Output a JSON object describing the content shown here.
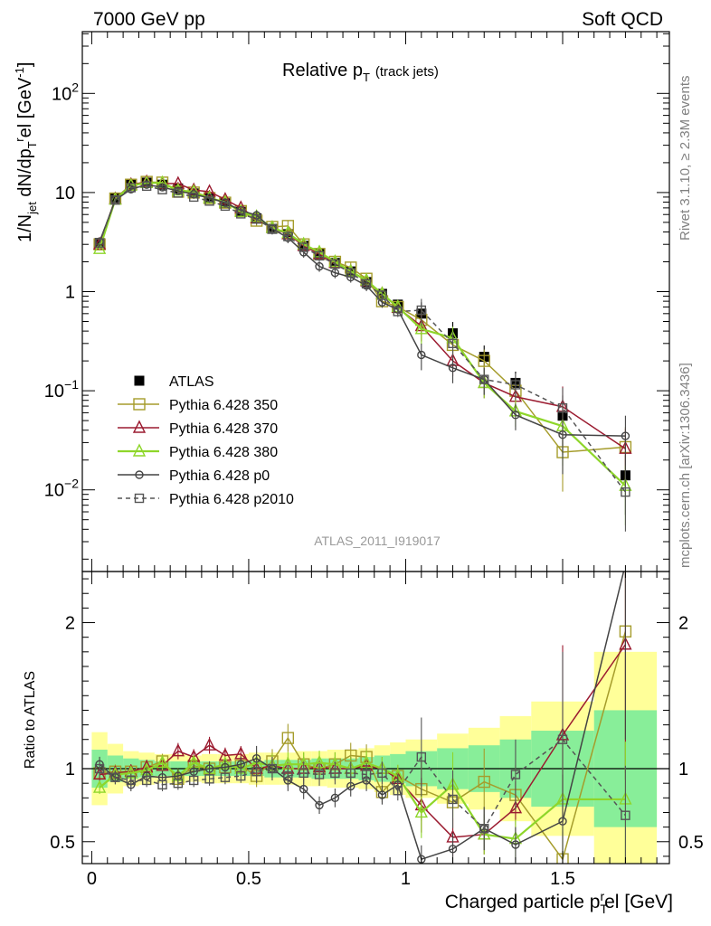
{
  "header": {
    "left": "7000 GeV pp",
    "right": "Soft QCD"
  },
  "side_labels": {
    "rivet": "Rivet 3.1.10,  ≥ 2.3M events",
    "mcplots": "mcplots.cern.ch [arXiv:1306.3436]"
  },
  "analysis_id": "ATLAS_2011_I919017",
  "chart_data": [
    {
      "type": "line",
      "title": "Relative pᵀ (track jets)",
      "title_main": "Relative p",
      "title_sub": "T",
      "title_suffix": "(track jets)",
      "ylabel": "1/N_jet dN/dp_T^rel [GeV^-1]",
      "yscale": "log",
      "xlim": [
        -0.03,
        1.84
      ],
      "ylim": [
        0.0015,
        420
      ],
      "y_ticks": [
        {
          "value": 0.01,
          "label": "10",
          "sup": "−2"
        },
        {
          "value": 0.1,
          "label": "10",
          "sup": "−1"
        },
        {
          "value": 1,
          "label": "1",
          "sup": ""
        },
        {
          "value": 10,
          "label": "10",
          "sup": ""
        },
        {
          "value": 100,
          "label": "10",
          "sup": "2"
        }
      ],
      "x": [
        0.025,
        0.075,
        0.125,
        0.175,
        0.225,
        0.275,
        0.325,
        0.375,
        0.425,
        0.475,
        0.525,
        0.575,
        0.625,
        0.675,
        0.725,
        0.775,
        0.825,
        0.875,
        0.925,
        0.975,
        1.05,
        1.15,
        1.25,
        1.35,
        1.5,
        1.7
      ],
      "series": [
        {
          "name": "ATLAS",
          "color": "#000000",
          "marker": "filled-square",
          "dashed": false,
          "values": [
            3.1,
            8.9,
            12.2,
            12.6,
            12.0,
            11.0,
            9.8,
            8.8,
            7.8,
            6.4,
            5.5,
            4.3,
            3.8,
            2.9,
            2.4,
            1.95,
            1.6,
            1.25,
            0.95,
            0.74,
            0.6,
            0.38,
            0.22,
            0.12,
            0.056,
            0.014
          ]
        },
        {
          "name": "Pythia 6.428 350",
          "color": "#a59c2b",
          "marker": "open-square",
          "dashed": false,
          "values": [
            3.0,
            8.7,
            12.0,
            12.8,
            12.6,
            10.2,
            10.0,
            8.8,
            7.9,
            6.5,
            5.2,
            4.5,
            4.6,
            3.0,
            2.4,
            2.0,
            1.75,
            1.35,
            0.8,
            0.7,
            0.52,
            0.29,
            0.2,
            0.1,
            0.024,
            0.027
          ]
        },
        {
          "name": "Pythia 6.428 370",
          "color": "#9b1b30",
          "marker": "open-triangle",
          "dashed": false,
          "values": [
            3.0,
            8.6,
            12.0,
            12.8,
            12.3,
            12.3,
            10.6,
            10.2,
            8.5,
            7.0,
            5.5,
            4.4,
            3.8,
            2.9,
            2.4,
            1.95,
            1.6,
            1.28,
            0.95,
            0.69,
            0.45,
            0.2,
            0.12,
            0.087,
            0.069,
            0.026
          ]
        },
        {
          "name": "Pythia 6.428 380",
          "color": "#8ed62a",
          "marker": "open-triangle",
          "dashed": false,
          "values": [
            2.7,
            8.5,
            11.8,
            12.5,
            12.5,
            10.5,
            10.2,
            8.8,
            8.0,
            6.4,
            5.7,
            4.4,
            3.9,
            3.0,
            2.5,
            2.0,
            1.6,
            1.3,
            0.95,
            0.7,
            0.42,
            0.34,
            0.12,
            0.062,
            0.044,
            0.011
          ]
        },
        {
          "name": "Pythia 6.428 p0",
          "color": "#444444",
          "marker": "open-circle",
          "dashed": false,
          "values": [
            3.2,
            8.4,
            10.8,
            12.0,
            11.3,
            10.4,
            9.6,
            8.8,
            7.9,
            6.6,
            5.9,
            4.3,
            3.5,
            2.5,
            1.8,
            1.55,
            1.4,
            1.15,
            0.78,
            0.66,
            0.23,
            0.17,
            0.13,
            0.057,
            0.036,
            0.035
          ]
        },
        {
          "name": "Pythia 6.428 p2010",
          "color": "#555555",
          "marker": "open-square",
          "dashed": true,
          "values": [
            3.1,
            8.4,
            11.2,
            11.6,
            10.7,
            9.9,
            9.0,
            8.2,
            7.3,
            6.1,
            5.4,
            4.3,
            3.6,
            2.8,
            2.3,
            1.9,
            1.55,
            1.2,
            0.92,
            0.63,
            0.65,
            0.3,
            0.13,
            0.115,
            0.067,
            0.0095
          ]
        }
      ],
      "legend_position": "middle-left"
    },
    {
      "type": "line",
      "ylabel": "Ratio to ATLAS",
      "xlabel": "Charged particle p_T^rel [GeV]",
      "xlabel_main": "Charged particle p",
      "xlabel_sub": "T",
      "xlabel_sup": "r",
      "xlabel_suffix": "el [GeV]",
      "xlim": [
        -0.03,
        1.84
      ],
      "ylim": [
        0.35,
        2.35
      ],
      "x_ticks": [
        {
          "value": 0,
          "label": "0"
        },
        {
          "value": 0.5,
          "label": "0.5"
        },
        {
          "value": 1,
          "label": "1"
        },
        {
          "value": 1.5,
          "label": "1.5"
        }
      ],
      "y_ticks": [
        {
          "value": 0.5,
          "label": "0.5"
        },
        {
          "value": 1,
          "label": "1"
        },
        {
          "value": 2,
          "label": "2"
        }
      ],
      "band_edges": [
        0.0,
        0.05,
        0.1,
        0.15,
        0.2,
        0.25,
        0.3,
        0.35,
        0.4,
        0.45,
        0.5,
        0.55,
        0.6,
        0.65,
        0.7,
        0.75,
        0.8,
        0.85,
        0.9,
        0.95,
        1.0,
        1.1,
        1.2,
        1.3,
        1.4,
        1.6,
        1.8
      ],
      "band_inner": [
        0.13,
        0.09,
        0.07,
        0.06,
        0.05,
        0.05,
        0.05,
        0.05,
        0.05,
        0.05,
        0.05,
        0.06,
        0.06,
        0.06,
        0.07,
        0.07,
        0.07,
        0.08,
        0.09,
        0.1,
        0.12,
        0.14,
        0.16,
        0.2,
        0.26,
        0.4
      ],
      "band_outer": [
        0.25,
        0.17,
        0.12,
        0.11,
        0.1,
        0.1,
        0.09,
        0.1,
        0.1,
        0.1,
        0.11,
        0.11,
        0.11,
        0.12,
        0.12,
        0.13,
        0.13,
        0.14,
        0.16,
        0.18,
        0.2,
        0.24,
        0.28,
        0.36,
        0.46,
        0.8
      ],
      "x": [
        0.025,
        0.075,
        0.125,
        0.175,
        0.225,
        0.275,
        0.325,
        0.375,
        0.425,
        0.475,
        0.525,
        0.575,
        0.625,
        0.675,
        0.725,
        0.775,
        0.825,
        0.875,
        0.925,
        0.975,
        1.05,
        1.15,
        1.25,
        1.35,
        1.5,
        1.7
      ],
      "series": [
        {
          "name": "Pythia 6.428 350",
          "color": "#a59c2b",
          "marker": "open-square",
          "dashed": false,
          "values": [
            0.97,
            0.98,
            0.98,
            1.01,
            1.05,
            0.93,
            1.02,
            1.0,
            1.01,
            1.02,
            0.95,
            1.05,
            1.21,
            1.03,
            1.0,
            1.03,
            1.09,
            1.08,
            0.84,
            0.95,
            0.86,
            0.77,
            0.91,
            0.82,
            0.38,
            1.94
          ]
        },
        {
          "name": "Pythia 6.428 370",
          "color": "#9b1b30",
          "marker": "open-triangle",
          "dashed": false,
          "values": [
            0.96,
            0.97,
            0.98,
            1.01,
            1.02,
            1.12,
            1.08,
            1.16,
            1.09,
            1.1,
            1.0,
            1.02,
            1.0,
            1.0,
            1.01,
            1.0,
            1.0,
            1.02,
            1.0,
            0.93,
            0.75,
            0.53,
            0.55,
            0.73,
            1.23,
            1.85
          ]
        },
        {
          "name": "Pythia 6.428 380",
          "color": "#8ed62a",
          "marker": "open-triangle",
          "dashed": false,
          "values": [
            0.87,
            0.96,
            0.97,
            0.99,
            1.04,
            0.95,
            1.04,
            1.0,
            1.03,
            1.0,
            1.04,
            1.02,
            1.03,
            1.03,
            1.04,
            1.03,
            1.0,
            1.04,
            1.0,
            0.95,
            0.7,
            0.89,
            0.55,
            0.52,
            0.79,
            0.79
          ]
        },
        {
          "name": "Pythia 6.428 p0",
          "color": "#444444",
          "marker": "open-circle",
          "dashed": false,
          "values": [
            1.03,
            0.94,
            0.89,
            0.95,
            0.94,
            0.95,
            0.98,
            1.0,
            1.01,
            1.03,
            1.07,
            1.0,
            0.92,
            0.86,
            0.75,
            0.8,
            0.88,
            0.92,
            0.82,
            0.89,
            0.38,
            0.45,
            0.59,
            0.48,
            0.64,
            2.4
          ]
        },
        {
          "name": "Pythia 6.428 p2010",
          "color": "#555555",
          "marker": "open-square",
          "dashed": true,
          "values": [
            1.0,
            0.94,
            0.92,
            0.92,
            0.89,
            0.9,
            0.92,
            0.93,
            0.94,
            0.95,
            0.98,
            1.0,
            0.95,
            0.97,
            0.96,
            0.97,
            0.97,
            0.96,
            0.97,
            0.85,
            1.08,
            0.79,
            0.59,
            0.96,
            1.2,
            0.68
          ]
        }
      ]
    }
  ]
}
